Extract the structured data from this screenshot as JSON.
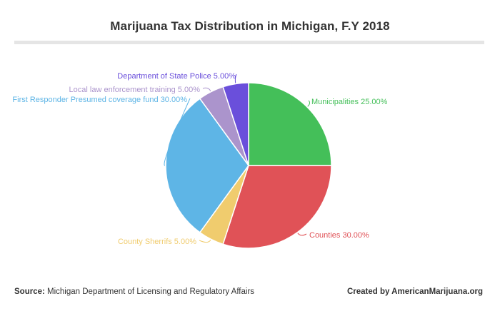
{
  "title": "Marijuana Tax Distribution in Michigan, F.Y 2018",
  "footer": {
    "source_label": "Source:",
    "source_text": "Michigan Department of Licensing and Regulatory Affairs",
    "created_by": "Created by AmericanMarijuana.org"
  },
  "chart_data": {
    "type": "pie",
    "title": "Marijuana Tax Distribution in Michigan, F.Y 2018",
    "slices": [
      {
        "label": "Municipalities",
        "value": 25.0,
        "display": "Municipalities 25.00%",
        "color": "#44bf59"
      },
      {
        "label": "Counties",
        "value": 30.0,
        "display": "Counties 30.00%",
        "color": "#e05257"
      },
      {
        "label": "County Sherrifs",
        "value": 5.0,
        "display": "County Sherrifs 5.00%",
        "color": "#f0cc6e"
      },
      {
        "label": "First Responder Presumed coverage fund",
        "value": 30.0,
        "display": "First Responder Presumed coverage fund 30.00%",
        "color": "#5eb5e6"
      },
      {
        "label": "Local law enforcement training",
        "value": 5.0,
        "display": "Local law enforcement training 5.00%",
        "color": "#ab94cc"
      },
      {
        "label": "Department of State Police",
        "value": 5.0,
        "display": "Department of State Police 5.00%",
        "color": "#6a4fdb"
      }
    ]
  }
}
